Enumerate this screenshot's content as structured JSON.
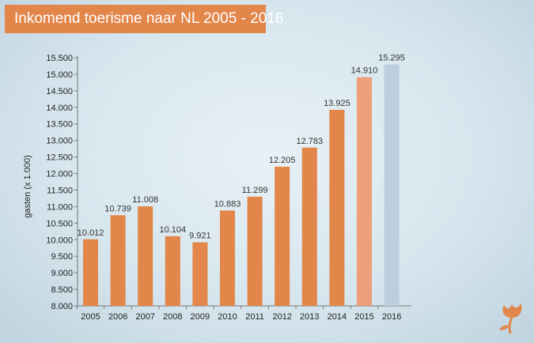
{
  "title": "Inkomend toerisme naar NL 2005 - 2016",
  "colors": {
    "bar": "#e2864a",
    "bar_2015": "#ec9f79",
    "bar_2016": "#bccfdc",
    "banner": "#e2864a"
  },
  "chart_data": {
    "type": "bar",
    "title": "Inkomend toerisme naar NL 2005 - 2016",
    "xlabel": "",
    "ylabel": "gasten (x 1.000)",
    "categories": [
      "2005",
      "2006",
      "2007",
      "2008",
      "2009",
      "2010",
      "2011",
      "2012",
      "2013",
      "2014",
      "2015",
      "2016"
    ],
    "values": [
      10012,
      10739,
      11008,
      10104,
      9921,
      10883,
      11299,
      12205,
      12783,
      13925,
      14910,
      15295
    ],
    "value_labels": [
      "10.012",
      "10.739",
      "11.008",
      "10.104",
      "9.921",
      "10.883",
      "11.299",
      "12.205",
      "12.783",
      "13.925",
      "14.910",
      "15.295"
    ],
    "ylim": [
      8000,
      15500
    ],
    "yticks": [
      8000,
      8500,
      9000,
      9500,
      10000,
      10500,
      11000,
      11500,
      12000,
      12500,
      13000,
      13500,
      14000,
      14500,
      15000,
      15500
    ],
    "ytick_labels": [
      "8.000",
      "8.500",
      "9.000",
      "9.500",
      "10.000",
      "10.500",
      "11.000",
      "11.500",
      "12.000",
      "12.500",
      "13.000",
      "13.500",
      "14.000",
      "14.500",
      "15.000",
      "15.500"
    ],
    "grid": false,
    "legend": "none"
  }
}
